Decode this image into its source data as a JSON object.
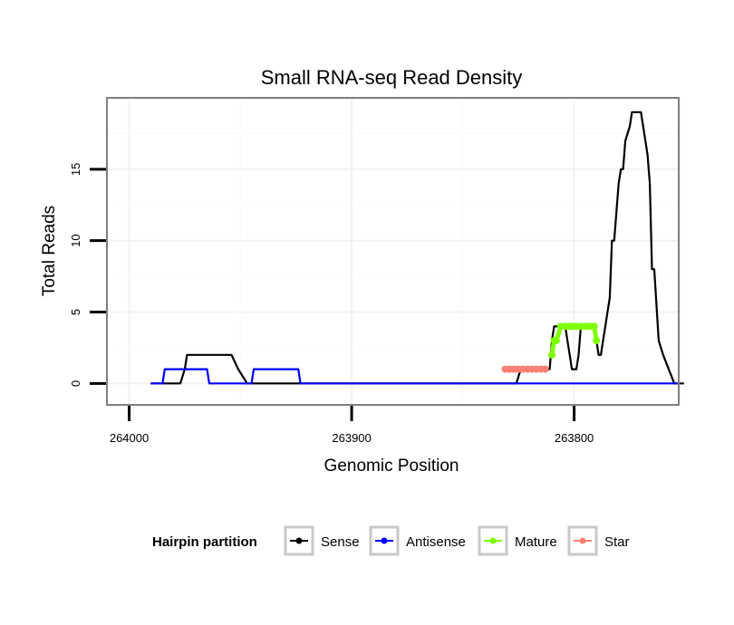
{
  "chart_data": {
    "type": "line",
    "title": "Small RNA-seq Read Density",
    "xlabel": "Genomic Position",
    "ylabel": "Total Reads",
    "x_reversed": true,
    "xlim": [
      264010,
      263753
    ],
    "ylim": [
      -1.5,
      20
    ],
    "x_ticks": [
      264000,
      263900,
      263800
    ],
    "x_tick_labels": [
      "264000",
      "263900",
      "263800"
    ],
    "y_ticks": [
      0,
      5,
      10,
      15
    ],
    "y_tick_labels": [
      "0",
      "5",
      "10",
      "15"
    ],
    "grid": true,
    "legend": {
      "title": "Hairpin partition",
      "position": "bottom",
      "entries": [
        {
          "name": "Sense",
          "color": "#000000"
        },
        {
          "name": "Antisense",
          "color": "#0000ff"
        },
        {
          "name": "Mature",
          "color": "#7fff00"
        },
        {
          "name": "Star",
          "color": "#fa8072"
        }
      ]
    },
    "series": [
      {
        "name": "Sense",
        "color": "#000000",
        "marker": false,
        "x": [
          263990,
          263977,
          263975,
          263974,
          263954,
          263951,
          263947,
          263826,
          263824,
          263811,
          263810,
          263809,
          263808,
          263806,
          263804,
          263803,
          263802,
          263801,
          263799,
          263798,
          263797,
          263791,
          263790,
          263789,
          263788,
          263787,
          263786,
          263785,
          263784,
          263783,
          263782,
          263780,
          263779,
          263778,
          263777,
          263775,
          263774,
          263773,
          263772,
          263771,
          263770,
          263768,
          263767,
          263766,
          263765,
          263764,
          263762,
          263760,
          263755,
          263751
        ],
        "y": [
          0,
          0,
          1,
          2,
          2,
          1,
          0,
          0,
          1,
          1,
          3,
          4,
          4,
          4,
          4,
          3,
          2,
          1,
          1,
          2,
          4,
          4,
          3,
          2,
          2,
          3,
          4,
          5,
          6,
          10,
          10,
          14,
          15,
          15,
          17,
          18,
          19,
          19,
          19,
          19,
          19,
          17,
          16,
          14,
          8,
          8,
          3,
          2,
          0,
          0
        ]
      },
      {
        "name": "Antisense",
        "color": "#0000ff",
        "marker": false,
        "x": [
          263990,
          263985,
          263984,
          263965,
          263964,
          263945,
          263944,
          263924,
          263923,
          263753
        ],
        "y": [
          0,
          0,
          1,
          1,
          0,
          0,
          1,
          1,
          0,
          0
        ]
      },
      {
        "name": "Mature",
        "color": "#7fff00",
        "marker": true,
        "x": [
          263810,
          263809,
          263808,
          263806,
          263804,
          263802,
          263801,
          263799,
          263797,
          263795,
          263793,
          263791,
          263790
        ],
        "y": [
          2,
          3,
          3,
          4,
          4,
          4,
          4,
          4,
          4,
          4,
          4,
          4,
          3
        ]
      },
      {
        "name": "Star",
        "color": "#fa8072",
        "marker": true,
        "x": [
          263831,
          263829,
          263827,
          263825,
          263823,
          263821,
          263819,
          263817,
          263815,
          263813
        ],
        "y": [
          1,
          1,
          1,
          1,
          1,
          1,
          1,
          1,
          1,
          1
        ]
      }
    ]
  }
}
